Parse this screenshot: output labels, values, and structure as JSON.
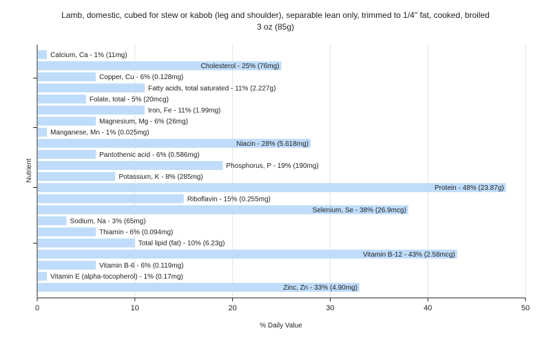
{
  "chart_data": {
    "type": "bar",
    "orientation": "horizontal",
    "title_line1": "Lamb, domestic, cubed for stew or kabob (leg and shoulder), separable lean only, trimmed to 1/4\" fat, cooked, broiled",
    "title_line2": "3 oz (85g)",
    "xlabel": "% Daily Value",
    "ylabel": "Nutrient",
    "xlim": [
      0,
      50
    ],
    "xticks": [
      "0",
      "10",
      "20",
      "30",
      "40",
      "50"
    ],
    "grid": "vertical",
    "bar_color": "#bfdcfa",
    "categories": [
      "Calcium, Ca - 1% (11mg)",
      "Cholesterol - 25% (76mg)",
      "Copper, Cu - 6% (0.128mg)",
      "Fatty acids, total saturated - 11% (2.227g)",
      "Folate, total - 5% (20mcg)",
      "Iron, Fe - 11% (1.99mg)",
      "Magnesium, Mg - 6% (26mg)",
      "Manganese, Mn - 1% (0.025mg)",
      "Niacin - 28% (5.618mg)",
      "Pantothenic acid - 6% (0.586mg)",
      "Phosphorus, P - 19% (190mg)",
      "Potassium, K - 8% (285mg)",
      "Protein - 48% (23.87g)",
      "Riboflavin - 15% (0.255mg)",
      "Selenium, Se - 38% (26.9mcg)",
      "Sodium, Na - 3% (65mg)",
      "Thiamin - 6% (0.094mg)",
      "Total lipid (fat) - 10% (6.23g)",
      "Vitamin B-12 - 43% (2.58mcg)",
      "Vitamin B-6 - 6% (0.119mg)",
      "Vitamin E (alpha-tocopherol) - 1% (0.17mg)",
      "Zinc, Zn - 33% (4.90mg)"
    ],
    "values": [
      1,
      25,
      6,
      11,
      5,
      11,
      6,
      1,
      28,
      6,
      19,
      8,
      48,
      15,
      38,
      3,
      6,
      10,
      43,
      6,
      1,
      33
    ]
  }
}
